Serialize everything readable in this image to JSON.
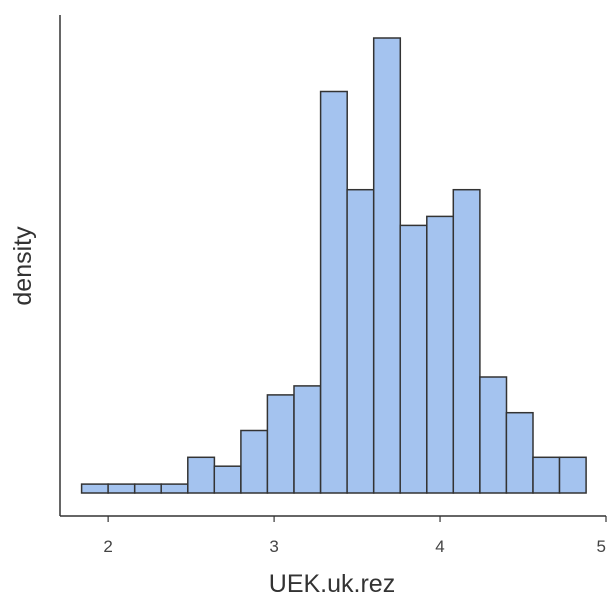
{
  "chart_data": {
    "type": "bar",
    "subtype": "histogram",
    "xlabel": "UEK.uk.rez",
    "ylabel": "density",
    "xlim": [
      1.71,
      5.0
    ],
    "xticks": [
      2,
      3,
      4,
      5
    ],
    "xtick_labels": [
      "2",
      "3",
      "4",
      "5"
    ],
    "y_tick_labels_shown": false,
    "grid": false,
    "bin_width": 0.16,
    "bins": [
      {
        "x0": 1.84,
        "x1": 2.0,
        "value": 1
      },
      {
        "x0": 2.0,
        "x1": 2.16,
        "value": 1
      },
      {
        "x0": 2.16,
        "x1": 2.32,
        "value": 1
      },
      {
        "x0": 2.32,
        "x1": 2.48,
        "value": 1
      },
      {
        "x0": 2.48,
        "x1": 2.64,
        "value": 4
      },
      {
        "x0": 2.64,
        "x1": 2.8,
        "value": 3
      },
      {
        "x0": 2.8,
        "x1": 2.96,
        "value": 7
      },
      {
        "x0": 2.96,
        "x1": 3.12,
        "value": 11
      },
      {
        "x0": 3.12,
        "x1": 3.28,
        "value": 12
      },
      {
        "x0": 3.28,
        "x1": 3.44,
        "value": 45
      },
      {
        "x0": 3.44,
        "x1": 3.6,
        "value": 34
      },
      {
        "x0": 3.6,
        "x1": 3.76,
        "value": 51
      },
      {
        "x0": 3.76,
        "x1": 3.92,
        "value": 30
      },
      {
        "x0": 3.92,
        "x1": 4.08,
        "value": 31
      },
      {
        "x0": 4.08,
        "x1": 4.24,
        "value": 34
      },
      {
        "x0": 4.24,
        "x1": 4.4,
        "value": 13
      },
      {
        "x0": 4.4,
        "x1": 4.56,
        "value": 9
      },
      {
        "x0": 4.56,
        "x1": 4.72,
        "value": 4
      },
      {
        "x0": 4.72,
        "x1": 4.88,
        "value": 4
      }
    ],
    "ylim": [
      0,
      53
    ],
    "colors": {
      "fill": "#a4c3ef",
      "stroke": "#333333",
      "axis": "#333333"
    }
  }
}
